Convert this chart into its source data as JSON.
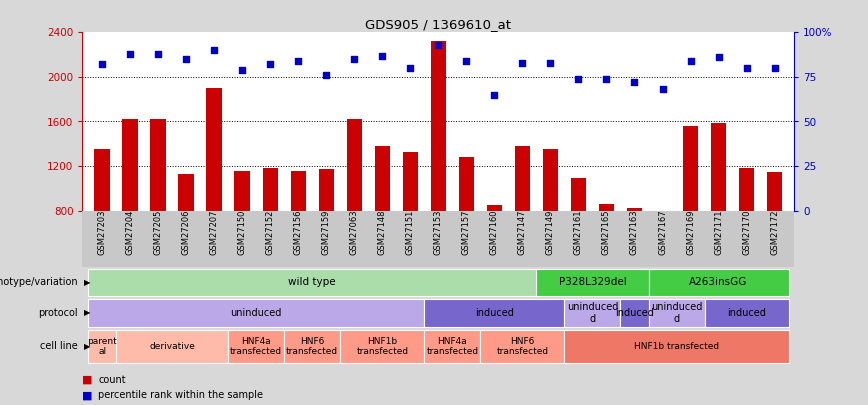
{
  "title": "GDS905 / 1369610_at",
  "samples": [
    "GSM27203",
    "GSM27204",
    "GSM27205",
    "GSM27206",
    "GSM27207",
    "GSM27150",
    "GSM27152",
    "GSM27156",
    "GSM27159",
    "GSM27063",
    "GSM27148",
    "GSM27151",
    "GSM27153",
    "GSM27157",
    "GSM27160",
    "GSM27147",
    "GSM27149",
    "GSM27161",
    "GSM27165",
    "GSM27163",
    "GSM27167",
    "GSM27169",
    "GSM27171",
    "GSM27170",
    "GSM27172"
  ],
  "counts": [
    1350,
    1620,
    1620,
    1130,
    1900,
    1160,
    1180,
    1160,
    1170,
    1620,
    1380,
    1330,
    2320,
    1280,
    850,
    1380,
    1350,
    1090,
    860,
    820,
    800,
    1560,
    1590,
    1180,
    1150
  ],
  "percentiles": [
    82,
    88,
    88,
    85,
    90,
    79,
    82,
    84,
    76,
    85,
    87,
    80,
    93,
    84,
    65,
    83,
    83,
    74,
    74,
    72,
    68,
    84,
    86,
    80,
    80
  ],
  "ylim_left": [
    800,
    2400
  ],
  "ylim_right": [
    0,
    100
  ],
  "yticks_left": [
    800,
    1200,
    1600,
    2000,
    2400
  ],
  "yticks_right": [
    0,
    25,
    50,
    75,
    100
  ],
  "bar_color": "#CC0000",
  "dot_color": "#0000CC",
  "background_color": "#D8D8D8",
  "plot_bg_color": "#FFFFFF",
  "xtick_bg_color": "#C8C8C8",
  "genotype_row": {
    "label": "genotype/variation",
    "segments": [
      {
        "text": "wild type",
        "start": 0,
        "end": 16,
        "color": "#AADDAA"
      },
      {
        "text": "P328L329del",
        "start": 16,
        "end": 20,
        "color": "#44CC44"
      },
      {
        "text": "A263insGG",
        "start": 20,
        "end": 25,
        "color": "#44CC44"
      }
    ]
  },
  "protocol_row": {
    "label": "protocol",
    "segments": [
      {
        "text": "uninduced",
        "start": 0,
        "end": 12,
        "color": "#BBA8E8"
      },
      {
        "text": "induced",
        "start": 12,
        "end": 17,
        "color": "#7766CC"
      },
      {
        "text": "uninduced\nd",
        "start": 17,
        "end": 19,
        "color": "#BBA8E8"
      },
      {
        "text": "induced",
        "start": 19,
        "end": 20,
        "color": "#7766CC"
      },
      {
        "text": "uninduced\nd",
        "start": 20,
        "end": 22,
        "color": "#BBA8E8"
      },
      {
        "text": "induced",
        "start": 22,
        "end": 25,
        "color": "#7766CC"
      }
    ]
  },
  "cellline_row": {
    "label": "cell line",
    "segments": [
      {
        "text": "parent\nal",
        "start": 0,
        "end": 1,
        "color": "#FFBBAA"
      },
      {
        "text": "derivative",
        "start": 1,
        "end": 5,
        "color": "#FFBBAA"
      },
      {
        "text": "HNF4a\ntransfected",
        "start": 5,
        "end": 7,
        "color": "#FF9988"
      },
      {
        "text": "HNF6\ntransfected",
        "start": 7,
        "end": 9,
        "color": "#FF9988"
      },
      {
        "text": "HNF1b\ntransfected",
        "start": 9,
        "end": 12,
        "color": "#FF9988"
      },
      {
        "text": "HNF4a\ntransfected",
        "start": 12,
        "end": 14,
        "color": "#FF9988"
      },
      {
        "text": "HNF6\ntransfected",
        "start": 14,
        "end": 17,
        "color": "#FF9988"
      },
      {
        "text": "HNF1b transfected",
        "start": 17,
        "end": 25,
        "color": "#EE7766"
      }
    ]
  }
}
